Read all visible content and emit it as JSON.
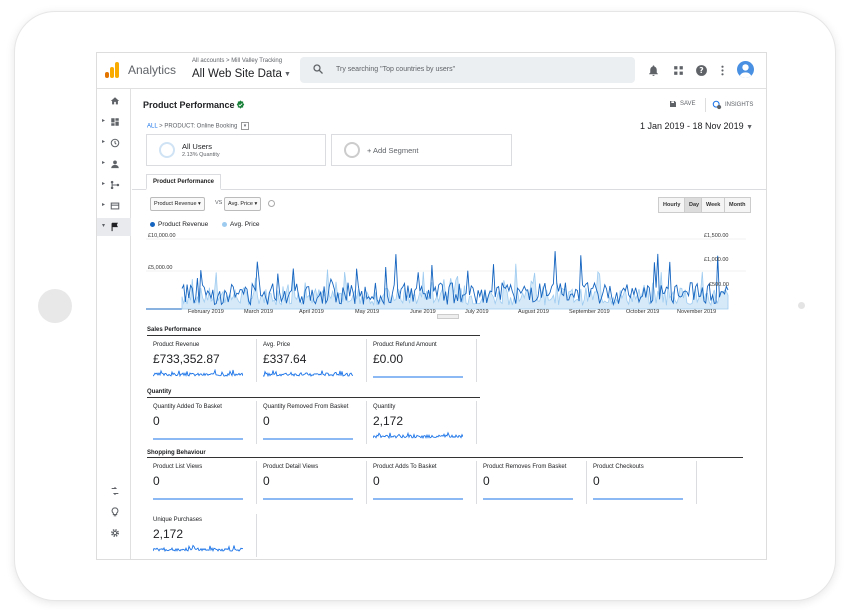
{
  "app": {
    "name": "Analytics",
    "account_path": "All accounts > Mill Valley Tracking",
    "view": "All Web Site Data"
  },
  "search": {
    "placeholder": "Try searching \"Top countries by users\""
  },
  "colors": {
    "accent": "#1a73e8",
    "revenue_series": "#1565c0",
    "price_series": "#9ecbf0",
    "logo_orange": "#f9ab00",
    "logo_dark_orange": "#e37400"
  },
  "page": {
    "title": "Product Performance",
    "save": "SAVE",
    "insights": "INSIGHTS",
    "date_range": "1 Jan 2019 - 18 Nov 2019"
  },
  "breadcrumb": {
    "all": "ALL",
    "sep": ">",
    "dimension": "PRODUCT:",
    "value": "Online Booking"
  },
  "segments": [
    {
      "title": "All Users",
      "subtitle": "2.13% Quantity"
    },
    {
      "title": "+ Add Segment"
    }
  ],
  "tabs": {
    "active": "Product Performance"
  },
  "controls": {
    "metric1": "Product Revenue",
    "vs": "VS",
    "metric2": "Avg. Price",
    "granularity": [
      "Hourly",
      "Day",
      "Week",
      "Month"
    ],
    "granularity_active": "Day"
  },
  "chart_data": {
    "type": "line",
    "series": [
      {
        "name": "Product Revenue",
        "axis": "left"
      },
      {
        "name": "Avg. Price",
        "axis": "right"
      }
    ],
    "y_left_ticks": [
      "£10,000.00",
      "£5,000.00"
    ],
    "y_right_ticks": [
      "£1,500.00",
      "£1,000.00",
      "£500.00"
    ],
    "x_ticks": [
      "February 2019",
      "March 2019",
      "April 2019",
      "May 2019",
      "June 2019",
      "July 2019",
      "August 2019",
      "September 2019",
      "October 2019",
      "November 2019"
    ],
    "x_range": [
      "2019-01-01",
      "2019-11-18"
    ],
    "ylim_left": [
      0,
      10000
    ],
    "ylim_right": [
      0,
      1500
    ]
  },
  "sections": [
    {
      "title": "Sales Performance",
      "cards": [
        {
          "label": "Product Revenue",
          "value": "£733,352.87",
          "spark": "active"
        },
        {
          "label": "Avg. Price",
          "value": "£337.64",
          "spark": "active"
        },
        {
          "label": "Product Refund Amount",
          "value": "£0.00",
          "spark": "flat"
        }
      ]
    },
    {
      "title": "Quantity",
      "cards": [
        {
          "label": "Quantity Added To Basket",
          "value": "0",
          "spark": "flat"
        },
        {
          "label": "Quantity Removed From Basket",
          "value": "0",
          "spark": "flat"
        },
        {
          "label": "Quantity",
          "value": "2,172",
          "spark": "active"
        }
      ]
    },
    {
      "title": "Shopping Behaviour",
      "cards": [
        {
          "label": "Product List Views",
          "value": "0",
          "spark": "flat"
        },
        {
          "label": "Product Detail Views",
          "value": "0",
          "spark": "flat"
        },
        {
          "label": "Product Adds To Basket",
          "value": "0",
          "spark": "flat"
        },
        {
          "label": "Product Removes From Basket",
          "value": "0",
          "spark": "flat"
        },
        {
          "label": "Product Checkouts",
          "value": "0",
          "spark": "flat"
        },
        {
          "label": "Unique Purchases",
          "value": "2,172",
          "spark": "active"
        }
      ]
    }
  ],
  "leftnav": [
    "home-icon",
    "dashboard-icon",
    "clock-icon",
    "person-icon",
    "acquisition-icon",
    "behavior-icon",
    "flag-icon"
  ],
  "leftnav_bottom": [
    "attribution-icon",
    "lightbulb-icon",
    "gear-icon"
  ],
  "collapse": "›"
}
